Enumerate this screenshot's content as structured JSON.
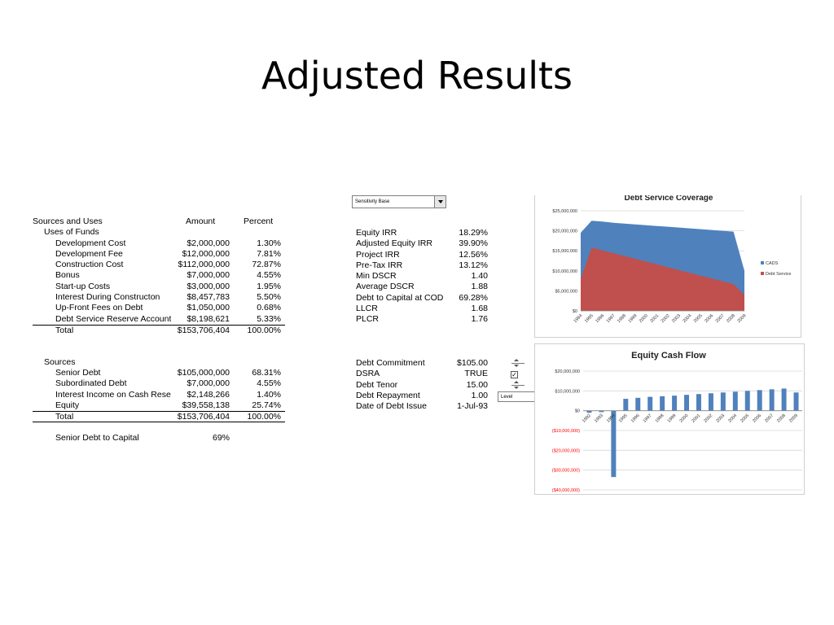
{
  "slide": {
    "title": "Adjusted Results"
  },
  "sources_uses": {
    "title": "Sources and Uses",
    "col_amount": "Amount",
    "col_percent": "Percent",
    "uses_label": "Uses of Funds",
    "uses": [
      {
        "label": "Development Cost",
        "amount": "$2,000,000",
        "percent": "1.30%"
      },
      {
        "label": "Development Fee",
        "amount": "$12,000,000",
        "percent": "7.81%"
      },
      {
        "label": "Construction Cost",
        "amount": "$112,000,000",
        "percent": "72.87%"
      },
      {
        "label": "Bonus",
        "amount": "$7,000,000",
        "percent": "4.55%"
      },
      {
        "label": "Start-up Costs",
        "amount": "$3,000,000",
        "percent": "1.95%"
      },
      {
        "label": "Interest During Constructon",
        "amount": "$8,457,783",
        "percent": "5.50%"
      },
      {
        "label": "Up-Front Fees on Debt",
        "amount": "$1,050,000",
        "percent": "0.68%"
      },
      {
        "label": "Debt Service Reserve Account",
        "amount": "$8,198,621",
        "percent": "5.33%"
      }
    ],
    "uses_total": {
      "label": "Total",
      "amount": "$153,706,404",
      "percent": "100.00%"
    },
    "sources_label": "Sources",
    "sources": [
      {
        "label": "Senior Debt",
        "amount": "$105,000,000",
        "percent": "68.31%"
      },
      {
        "label": "Subordinated Debt",
        "amount": "$7,000,000",
        "percent": "4.55%"
      },
      {
        "label": "Interest Income on Cash Reserves",
        "amount": "$2,148,266",
        "percent": "1.40%"
      },
      {
        "label": "Equity",
        "amount": "$39,558,138",
        "percent": "25.74%"
      }
    ],
    "sources_total": {
      "label": "Total",
      "amount": "$153,706,404",
      "percent": "100.00%"
    },
    "senior_debt_to_capital": {
      "label": "Senior Debt to Capital",
      "value": "69%"
    }
  },
  "sensitivity": {
    "selected": "Sensitivity Base"
  },
  "metrics": [
    {
      "label": "Equity IRR",
      "value": "18.29%"
    },
    {
      "label": "Adjusted Equity IRR",
      "value": "39.90%"
    },
    {
      "label": "Project IRR",
      "value": "12.56%"
    },
    {
      "label": "Pre-Tax IRR",
      "value": "13.12%"
    },
    {
      "label": "Min DSCR",
      "value": "1.40"
    },
    {
      "label": "Average DSCR",
      "value": "1.88"
    },
    {
      "label": "Debt to Capital at COD",
      "value": "69.28%"
    },
    {
      "label": "LLCR",
      "value": "1.68"
    },
    {
      "label": "PLCR",
      "value": "1.76"
    }
  ],
  "debt_inputs": [
    {
      "label": "Debt Commitment",
      "value": "$105.00"
    },
    {
      "label": "DSRA",
      "value": "TRUE"
    },
    {
      "label": "Debt Tenor",
      "value": "15.00"
    },
    {
      "label": "Debt Repayment",
      "value": "1.00"
    },
    {
      "label": "Date of Debt Issue",
      "value": "1-Jul-93"
    }
  ],
  "dsra_check": "✓",
  "repayment_type": {
    "selected": "Level"
  },
  "chart_data": [
    {
      "type": "area",
      "title": "Debt Service Coverage",
      "x": [
        "1994",
        "1995",
        "1996",
        "1997",
        "1998",
        "1999",
        "2000",
        "2001",
        "2002",
        "2003",
        "2004",
        "2005",
        "2006",
        "2007",
        "2008",
        "2009"
      ],
      "y_tick_labels": [
        "$25,000,000",
        "$20,000,000",
        "$15,000,000",
        "$10,000,000",
        "$5,000,000",
        "$0"
      ],
      "ylim": [
        0,
        25000000
      ],
      "legend_position": "right",
      "grid": true,
      "series": [
        {
          "name": "CADS",
          "color": "#4f81bd",
          "values": [
            19500000,
            22500000,
            22300000,
            22000000,
            21800000,
            21600000,
            21400000,
            21200000,
            21000000,
            20800000,
            20600000,
            20400000,
            20200000,
            20000000,
            19800000,
            10000000
          ]
        },
        {
          "name": "Debt Service",
          "color": "#c0504d",
          "values": [
            8000000,
            15800000,
            15100000,
            14400000,
            13700000,
            13000000,
            12300000,
            11600000,
            10900000,
            10200000,
            9500000,
            8800000,
            8100000,
            7400000,
            6700000,
            4000000
          ]
        }
      ]
    },
    {
      "type": "bar",
      "title": "Equity Cash Flow",
      "x": [
        "1992",
        "1993",
        "1994",
        "1995",
        "1996",
        "1997",
        "1998",
        "1999",
        "2000",
        "2001",
        "2002",
        "2003",
        "2004",
        "2005",
        "2006",
        "2007",
        "2008",
        "2009"
      ],
      "y_tick_labels": [
        "$20,000,000",
        "$10,000,000",
        "$0",
        "($10,000,000)",
        "($20,000,000)",
        "($30,000,000)",
        "($40,000,000)"
      ],
      "ylim": [
        -40000000,
        20000000
      ],
      "grid": true,
      "series": [
        {
          "name": "",
          "color": "#4f81bd",
          "values": [
            -1000000,
            -700000,
            -33500000,
            6000000,
            6500000,
            7000000,
            7300000,
            7600000,
            8000000,
            8400000,
            8800000,
            9200000,
            9600000,
            10000000,
            10400000,
            10800000,
            11200000,
            9200000
          ]
        }
      ]
    }
  ]
}
